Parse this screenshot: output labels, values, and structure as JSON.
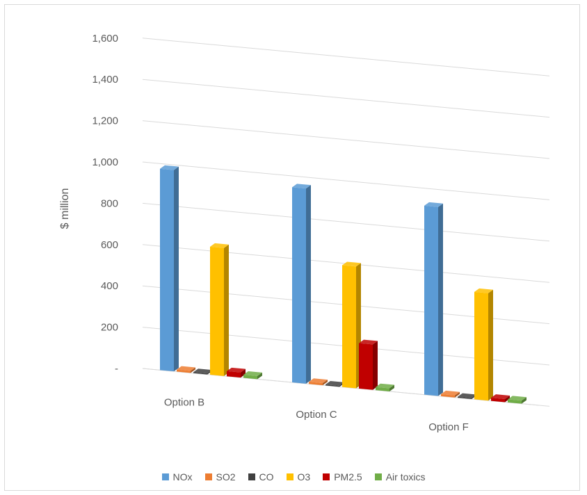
{
  "chart_data": {
    "type": "bar",
    "categories": [
      "Option B",
      "Option C",
      "Option F"
    ],
    "ylabel": "$ million",
    "ylim": [
      0,
      1600
    ],
    "yticks": [
      {
        "value": 0,
        "label": "-"
      },
      {
        "value": 200,
        "label": "200"
      },
      {
        "value": 400,
        "label": "400"
      },
      {
        "value": 600,
        "label": "600"
      },
      {
        "value": 800,
        "label": "800"
      },
      {
        "value": 1000,
        "label": "1,000"
      },
      {
        "value": 1200,
        "label": "1,200"
      },
      {
        "value": 1400,
        "label": "1,400"
      },
      {
        "value": 1600,
        "label": "1,600"
      }
    ],
    "grid": true,
    "legend_position": "bottom",
    "series": [
      {
        "name": "NOx",
        "color": "#5b9bd5",
        "values": [
          975,
          945,
          915
        ]
      },
      {
        "name": "SO2",
        "color": "#ed7d31",
        "values": [
          10,
          10,
          10
        ]
      },
      {
        "name": "CO",
        "color": "#404040",
        "values": [
          5,
          5,
          5
        ]
      },
      {
        "name": "O3",
        "color": "#ffc000",
        "values": [
          620,
          590,
          520
        ]
      },
      {
        "name": "PM2.5",
        "color": "#c00000",
        "values": [
          25,
          220,
          15
        ]
      },
      {
        "name": "Air toxics",
        "color": "#70ad47",
        "values": [
          15,
          15,
          15
        ]
      }
    ]
  }
}
